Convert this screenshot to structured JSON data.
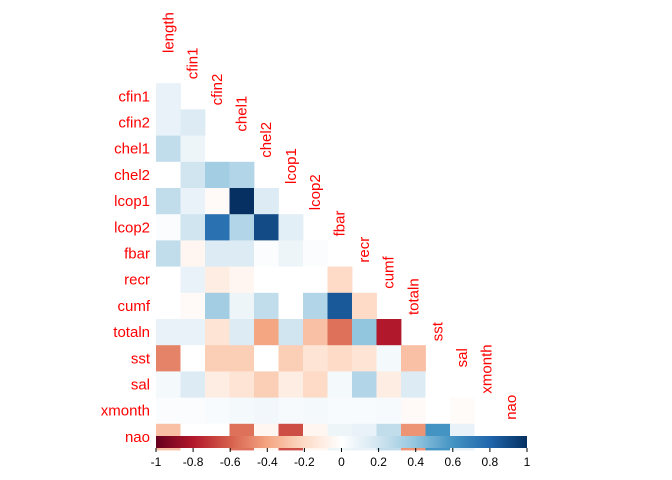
{
  "chart_data": {
    "type": "heatmap",
    "variables": [
      "length",
      "cfin1",
      "cfin2",
      "chel1",
      "chel2",
      "lcop1",
      "lcop2",
      "fbar",
      "recr",
      "cumf",
      "totaln",
      "sst",
      "sal",
      "xmonth",
      "nao"
    ],
    "matrix": [
      [
        null
      ],
      [
        0.1,
        null
      ],
      [
        0.1,
        0.15,
        null
      ],
      [
        0.25,
        0.08,
        0.0,
        null
      ],
      [
        0.0,
        0.2,
        0.35,
        0.3,
        null
      ],
      [
        0.25,
        0.1,
        -0.03,
        1.0,
        0.15,
        null
      ],
      [
        0.02,
        0.2,
        0.75,
        0.3,
        0.9,
        0.12,
        null
      ],
      [
        0.25,
        -0.05,
        0.15,
        0.15,
        0.02,
        0.08,
        0.02,
        null
      ],
      [
        0.0,
        0.1,
        -0.1,
        -0.05,
        0.0,
        0.0,
        0.0,
        -0.2,
        null
      ],
      [
        0.0,
        -0.03,
        0.35,
        0.08,
        0.25,
        0.0,
        0.3,
        0.85,
        -0.2,
        null
      ],
      [
        0.1,
        0.1,
        -0.15,
        0.15,
        -0.4,
        0.2,
        -0.3,
        -0.55,
        0.4,
        -0.8,
        null
      ],
      [
        -0.5,
        0.0,
        -0.25,
        -0.25,
        0.0,
        -0.25,
        -0.15,
        -0.2,
        -0.15,
        0.05,
        -0.3,
        null
      ],
      [
        0.05,
        0.15,
        -0.1,
        -0.15,
        -0.25,
        -0.1,
        -0.2,
        0.05,
        0.3,
        -0.1,
        0.15,
        0.0,
        null
      ],
      [
        0.02,
        0.02,
        0.03,
        0.05,
        0.06,
        0.04,
        0.05,
        0.03,
        0.03,
        0.04,
        -0.03,
        0.0,
        -0.02,
        null
      ],
      [
        -0.3,
        0.0,
        0.0,
        -0.55,
        -0.05,
        -0.65,
        -0.05,
        0.08,
        0.1,
        0.25,
        -0.45,
        0.6,
        0.1,
        0.0,
        null
      ]
    ],
    "colorbar": {
      "ticks": [
        "-1",
        "-0.8",
        "-0.6",
        "-0.4",
        "-0.2",
        "0",
        "0.2",
        "0.4",
        "0.6",
        "0.8",
        "1"
      ],
      "range": [
        -1,
        1
      ]
    },
    "palette": [
      "#67001f",
      "#b2182b",
      "#d6604d",
      "#f4a582",
      "#fddbc7",
      "#ffffff",
      "#d1e5f0",
      "#92c5de",
      "#4393c3",
      "#2166ac",
      "#053061"
    ],
    "label_color": "#ff0000"
  }
}
